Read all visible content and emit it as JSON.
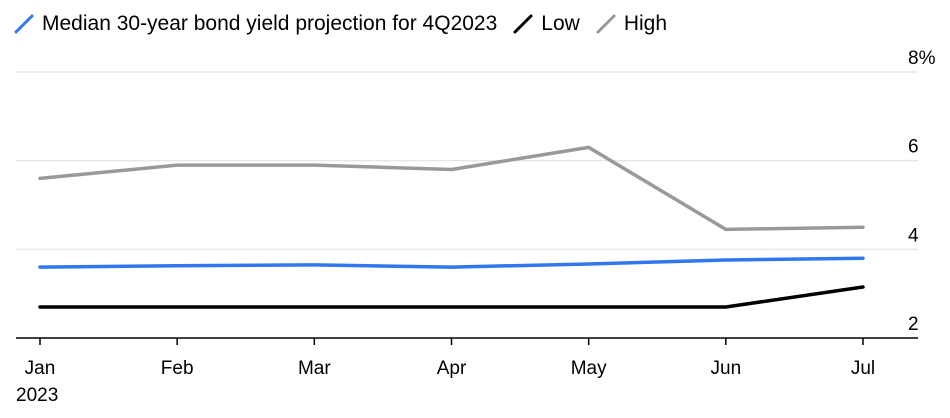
{
  "chart_data": {
    "type": "line",
    "categories": [
      "Jan",
      "Feb",
      "Mar",
      "Apr",
      "May",
      "Jun",
      "Jul"
    ],
    "year_label": "2023",
    "series": [
      {
        "name": "Median 30-year bond yield projection for 4Q2023",
        "color": "#3377ee",
        "values": [
          3.6,
          3.63,
          3.65,
          3.6,
          3.67,
          3.76,
          3.8
        ]
      },
      {
        "name": "Low",
        "color": "#000000",
        "values": [
          2.7,
          2.7,
          2.7,
          2.7,
          2.7,
          2.7,
          3.15
        ]
      },
      {
        "name": "High",
        "color": "#999999",
        "values": [
          5.6,
          5.9,
          5.9,
          5.8,
          6.3,
          4.45,
          4.5
        ]
      }
    ],
    "yticks": [
      "2",
      "4",
      "6",
      "8%"
    ],
    "ylim": [
      2,
      8
    ],
    "grid": true,
    "legend_position": "top-left"
  }
}
